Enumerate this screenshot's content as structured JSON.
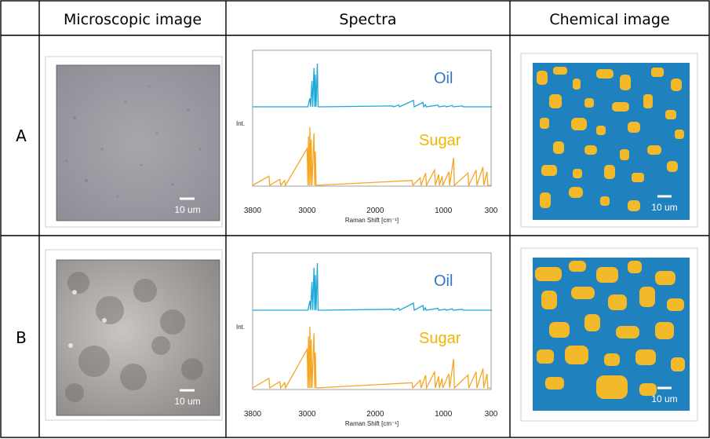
{
  "headers": {
    "microscopic": "Microscopic image",
    "spectra": "Spectra",
    "chemical": "Chemical image"
  },
  "rows": [
    {
      "label": "A",
      "scale_bar": "10 um"
    },
    {
      "label": "B",
      "scale_bar": "10 um"
    }
  ],
  "colors": {
    "oil": "#1fa7d8",
    "sugar": "#f5a623",
    "oil_label": "#2f78c4",
    "sugar_label": "#f5b400",
    "map_blue": "#1f82bf",
    "map_yellow": "#f2b92a"
  },
  "chart_data": [
    {
      "type": "line",
      "row": "A",
      "ylabel": "Int.",
      "xlabel": "Raman Shift [cm⁻¹]",
      "xlim": [
        3800,
        300
      ],
      "xticks": [
        "3800",
        "3000",
        "2000",
        "1000",
        "300"
      ],
      "series": [
        {
          "name": "Oil",
          "x": [
            3800,
            3000,
            2960,
            2930,
            2900,
            2880,
            2850,
            2800,
            1745,
            1655,
            1440,
            1300,
            1265,
            1080,
            970,
            870,
            720,
            300
          ],
          "y": [
            0,
            0,
            0.2,
            0.6,
            0.9,
            0.75,
            1.0,
            0,
            0.02,
            0.04,
            0.15,
            0.1,
            0.05,
            0.04,
            0.02,
            0.03,
            0.02,
            0
          ]
        },
        {
          "name": "Sugar",
          "x": [
            3800,
            3560,
            3400,
            3330,
            3000,
            2980,
            2960,
            2940,
            2900,
            2880,
            1460,
            1340,
            1260,
            1130,
            1070,
            1020,
            920,
            850,
            640,
            520,
            420,
            360
          ],
          "y": [
            0,
            0.15,
            0.1,
            0.08,
            0.6,
            0.8,
            0.95,
            0.75,
            0.85,
            0.55,
            0.08,
            0.12,
            0.2,
            0.25,
            0.18,
            0.15,
            0.22,
            0.45,
            0.2,
            0.25,
            0.3,
            0.22
          ]
        }
      ]
    },
    {
      "type": "line",
      "row": "B",
      "ylabel": "Int.",
      "xlabel": "Raman Shift [cm⁻¹]",
      "xlim": [
        3800,
        300
      ],
      "xticks": [
        "3800",
        "3000",
        "2000",
        "1000",
        "300"
      ],
      "series": [
        {
          "name": "Oil",
          "x": [
            3800,
            3000,
            2960,
            2930,
            2900,
            2880,
            2850,
            2800,
            1745,
            1655,
            1440,
            1300,
            1265,
            1080,
            970,
            870,
            720,
            300
          ],
          "y": [
            0,
            0,
            0.2,
            0.6,
            0.9,
            0.75,
            1.0,
            0,
            0.02,
            0.04,
            0.15,
            0.1,
            0.05,
            0.04,
            0.02,
            0.03,
            0.02,
            0
          ]
        },
        {
          "name": "Sugar",
          "x": [
            3800,
            3560,
            3400,
            3330,
            3000,
            2980,
            2960,
            2940,
            2900,
            2880,
            1460,
            1340,
            1260,
            1130,
            1070,
            1020,
            920,
            850,
            640,
            520,
            420,
            360
          ],
          "y": [
            0,
            0.15,
            0.1,
            0.08,
            0.6,
            0.8,
            0.95,
            0.75,
            0.85,
            0.55,
            0.08,
            0.12,
            0.2,
            0.25,
            0.18,
            0.15,
            0.22,
            0.45,
            0.2,
            0.25,
            0.3,
            0.22
          ]
        }
      ]
    }
  ]
}
